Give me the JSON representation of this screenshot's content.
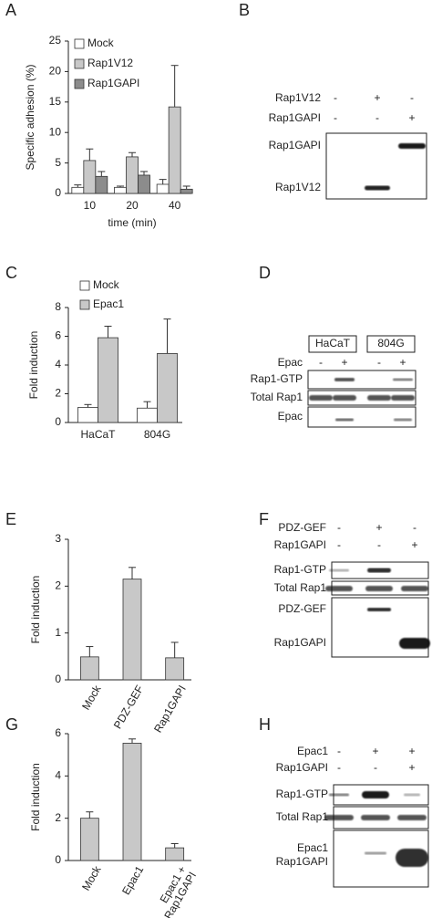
{
  "panels": [
    "A",
    "B",
    "C",
    "D",
    "E",
    "F",
    "G",
    "H"
  ],
  "chart_data": [
    {
      "type": "bar",
      "ylabel": "Specific adhesion (%)",
      "xlabel": "time (min)",
      "categories": [
        "10",
        "20",
        "40"
      ],
      "series": [
        {
          "name": "Mock",
          "color": "#ffffff",
          "values": [
            1.0,
            1.0,
            1.5
          ],
          "errors": [
            0.4,
            0.2,
            0.8
          ]
        },
        {
          "name": "Rap1V12",
          "color": "#c8c8c8",
          "values": [
            5.4,
            6.0,
            14.2
          ],
          "errors": [
            1.9,
            0.7,
            6.8
          ]
        },
        {
          "name": "Rap1GAPI",
          "color": "#8c8c8c",
          "values": [
            2.8,
            3.0,
            0.7
          ],
          "errors": [
            0.8,
            0.6,
            0.5
          ]
        }
      ],
      "ylim": [
        0,
        25
      ],
      "yticks": [
        0,
        5,
        10,
        15,
        20,
        25
      ]
    },
    {
      "type": "bar",
      "ylabel": "Fold induction",
      "categories": [
        "HaCaT",
        "804G"
      ],
      "series": [
        {
          "name": "Mock",
          "color": "#ffffff",
          "values": [
            1.05,
            1.0
          ],
          "errors": [
            0.2,
            0.45
          ]
        },
        {
          "name": "Epac1",
          "color": "#c8c8c8",
          "values": [
            5.9,
            4.8
          ],
          "errors": [
            0.8,
            2.4
          ]
        }
      ],
      "ylim": [
        0,
        8
      ],
      "yticks": [
        0,
        2,
        4,
        6,
        8
      ]
    },
    {
      "type": "bar",
      "ylabel": "Fold induction",
      "categories": [
        "Mock",
        "PDZ-GEF",
        "Rap1GAPI"
      ],
      "series": [
        {
          "color": "#c8c8c8",
          "values": [
            0.49,
            2.15,
            0.47
          ],
          "errors": [
            0.22,
            0.25,
            0.33
          ]
        }
      ],
      "ylim": [
        0,
        3
      ],
      "yticks": [
        0,
        1,
        2,
        3
      ]
    },
    {
      "type": "bar",
      "ylabel": "Fold induction",
      "categories": [
        "Mock",
        "Epac1",
        "Epac1 + Rap1GAPI"
      ],
      "series": [
        {
          "color": "#c8c8c8",
          "values": [
            2.0,
            5.55,
            0.6
          ],
          "errors": [
            0.3,
            0.2,
            0.2
          ]
        }
      ],
      "ylim": [
        0,
        6
      ],
      "yticks": [
        0,
        2,
        4,
        6
      ]
    }
  ],
  "blots": [
    {
      "conditions": [
        {
          "name": "Rap1V12",
          "signs": [
            "-",
            "+",
            "-"
          ]
        },
        {
          "name": "Rap1GAPI",
          "signs": [
            "-",
            "-",
            "+"
          ]
        }
      ],
      "rows": [
        {
          "labels": [
            "Rap1GAPI",
            "Rap1V12"
          ]
        }
      ]
    },
    {
      "groups": [
        "HaCaT",
        "804G"
      ],
      "conditions": [
        {
          "name": "Epac",
          "signs": [
            "-",
            "+",
            "-",
            "+"
          ]
        }
      ],
      "rows": [
        {
          "labels": [
            "Rap1-GTP"
          ]
        },
        {
          "labels": [
            "Total Rap1"
          ]
        },
        {
          "labels": [
            "Epac"
          ]
        }
      ]
    },
    {
      "conditions": [
        {
          "name": "PDZ-GEF",
          "signs": [
            "-",
            "+",
            "-"
          ]
        },
        {
          "name": "Rap1GAPI",
          "signs": [
            "-",
            "-",
            "+"
          ]
        }
      ],
      "rows": [
        {
          "labels": [
            "Rap1-GTP"
          ]
        },
        {
          "labels": [
            "Total Rap1"
          ]
        },
        {
          "labels": [
            "PDZ-GEF",
            "Rap1GAPI"
          ]
        }
      ]
    },
    {
      "conditions": [
        {
          "name": "Epac1",
          "signs": [
            "-",
            "+",
            "+"
          ]
        },
        {
          "name": "Rap1GAPI",
          "signs": [
            "-",
            "-",
            "+"
          ]
        }
      ],
      "rows": [
        {
          "labels": [
            "Rap1-GTP"
          ]
        },
        {
          "labels": [
            "Total Rap1"
          ]
        },
        {
          "labels": [
            "Epac1",
            "Rap1GAPI"
          ]
        }
      ]
    }
  ]
}
